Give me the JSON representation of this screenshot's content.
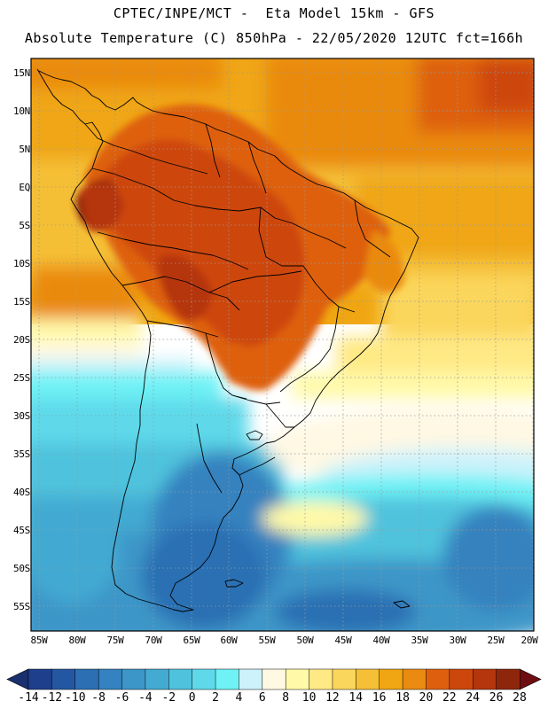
{
  "header": {
    "line1": "CPTEC/INPE/MCT -  Eta Model 15km - GFS",
    "line2": "Absolute Temperature (C) 850hPa - 22/05/2020 12UTC fct=166h"
  },
  "map": {
    "variable": "Absolute Temperature 850hPa",
    "units": "C",
    "lat_labels": [
      "15N",
      "10N",
      "5N",
      "EQ",
      "5S",
      "10S",
      "15S",
      "20S",
      "25S",
      "30S",
      "35S",
      "40S",
      "45S",
      "50S",
      "55S"
    ],
    "lon_labels": [
      "85W",
      "80W",
      "75W",
      "70W",
      "65W",
      "60W",
      "55W",
      "50W",
      "45W",
      "40W",
      "35W",
      "30W",
      "25W",
      "20W"
    ]
  },
  "colorbar": {
    "labels": [
      "-14",
      "-12",
      "-10",
      "-8",
      "-6",
      "-4",
      "-2",
      "0",
      "2",
      "4",
      "6",
      "8",
      "10",
      "12",
      "14",
      "16",
      "18",
      "20",
      "22",
      "24",
      "26",
      "28"
    ],
    "colors": [
      "#1d3f8c",
      "#2457a2",
      "#2c6fb3",
      "#3482bf",
      "#3c96c8",
      "#43aad2",
      "#4fc3dd",
      "#5fd9ea",
      "#6ef2f5",
      "#cdf2fb",
      "#fff8e3",
      "#fff9a8",
      "#ffe985",
      "#fbd65c",
      "#f5bf36",
      "#f0a612",
      "#ea8a11",
      "#de600f",
      "#cd470d",
      "#b5350c",
      "#8e260c"
    ],
    "low_color": "#1a2f6e",
    "high_color": "#6e0e12"
  }
}
